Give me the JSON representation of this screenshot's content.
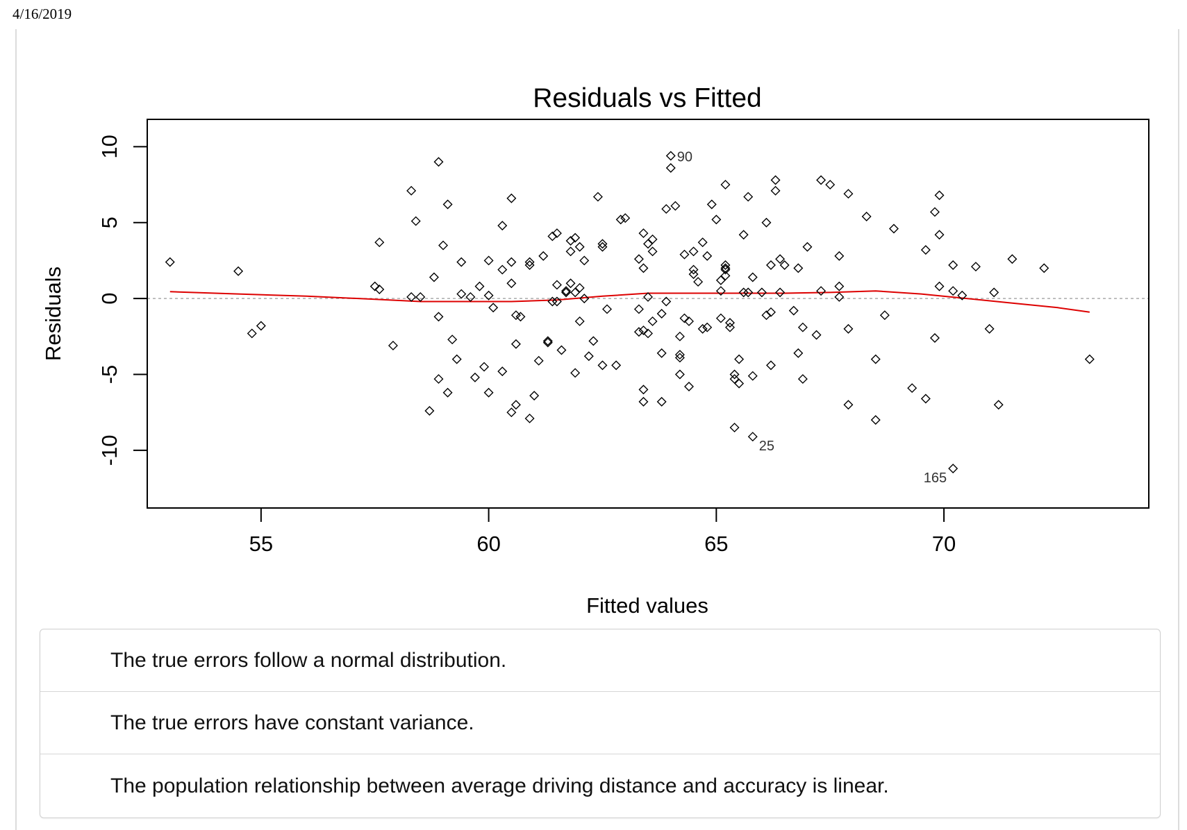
{
  "page": {
    "date": "4/16/2019"
  },
  "chart_data": {
    "type": "scatter",
    "title": "Residuals vs Fitted",
    "xlabel": "Fitted values",
    "ylabel": "Residuals",
    "xlim": [
      52.5,
      74.5
    ],
    "ylim": [
      -13.8,
      11.8
    ],
    "xticks": [
      55,
      60,
      65,
      70
    ],
    "yticks": [
      -10,
      -5,
      0,
      5,
      10
    ],
    "reference_line": 0,
    "colors": {
      "smooth": "#dd0000",
      "reference": "#aaaaaa",
      "points": "#000000"
    },
    "points": [
      [
        53.0,
        2.4
      ],
      [
        54.5,
        1.8
      ],
      [
        54.8,
        -2.3
      ],
      [
        55.0,
        -1.8
      ],
      [
        57.5,
        0.8
      ],
      [
        57.6,
        0.6
      ],
      [
        57.6,
        3.7
      ],
      [
        57.9,
        -3.1
      ],
      [
        58.3,
        7.1
      ],
      [
        58.3,
        0.1
      ],
      [
        58.4,
        5.1
      ],
      [
        58.5,
        0.1
      ],
      [
        58.7,
        -7.4
      ],
      [
        58.8,
        1.4
      ],
      [
        58.9,
        9.0
      ],
      [
        58.9,
        -1.2
      ],
      [
        58.9,
        -5.3
      ],
      [
        59.0,
        3.5
      ],
      [
        59.1,
        -6.2
      ],
      [
        59.1,
        6.2
      ],
      [
        59.2,
        -2.7
      ],
      [
        59.3,
        -4.0
      ],
      [
        59.4,
        2.4
      ],
      [
        59.4,
        0.3
      ],
      [
        59.6,
        0.1
      ],
      [
        59.7,
        -5.2
      ],
      [
        59.8,
        0.8
      ],
      [
        59.9,
        -4.5
      ],
      [
        60.0,
        -6.2
      ],
      [
        60.0,
        0.2
      ],
      [
        60.0,
        2.5
      ],
      [
        60.1,
        -0.6
      ],
      [
        60.3,
        1.9
      ],
      [
        60.3,
        4.8
      ],
      [
        60.3,
        -4.8
      ],
      [
        60.5,
        6.6
      ],
      [
        60.5,
        -7.5
      ],
      [
        60.5,
        2.4
      ],
      [
        60.5,
        1.0
      ],
      [
        60.6,
        -7.0
      ],
      [
        60.6,
        -1.1
      ],
      [
        60.6,
        -3.0
      ],
      [
        60.7,
        -1.2
      ],
      [
        60.9,
        -7.9
      ],
      [
        60.9,
        2.2
      ],
      [
        60.9,
        2.4
      ],
      [
        61.0,
        -6.4
      ],
      [
        61.1,
        -4.1
      ],
      [
        61.2,
        2.8
      ],
      [
        61.3,
        -2.8
      ],
      [
        61.3,
        -2.9
      ],
      [
        61.4,
        4.1
      ],
      [
        61.4,
        -0.2
      ],
      [
        61.5,
        -0.2
      ],
      [
        61.5,
        0.9
      ],
      [
        61.5,
        4.3
      ],
      [
        61.6,
        -3.4
      ],
      [
        61.7,
        0.5
      ],
      [
        61.7,
        0.4
      ],
      [
        61.8,
        1.0
      ],
      [
        61.8,
        3.8
      ],
      [
        61.8,
        3.1
      ],
      [
        61.9,
        -4.9
      ],
      [
        61.9,
        4.0
      ],
      [
        61.9,
        0.4
      ],
      [
        62.0,
        3.4
      ],
      [
        62.0,
        0.7
      ],
      [
        62.0,
        -1.5
      ],
      [
        62.1,
        0.0
      ],
      [
        62.1,
        2.5
      ],
      [
        62.2,
        -3.8
      ],
      [
        62.3,
        -2.8
      ],
      [
        62.4,
        6.7
      ],
      [
        62.5,
        -4.4
      ],
      [
        62.5,
        3.6
      ],
      [
        62.5,
        3.4
      ],
      [
        62.6,
        -0.7
      ],
      [
        62.8,
        -4.4
      ],
      [
        62.9,
        5.2
      ],
      [
        63.0,
        5.3
      ],
      [
        63.3,
        2.6
      ],
      [
        63.3,
        -0.7
      ],
      [
        63.3,
        -2.2
      ],
      [
        63.4,
        -2.1
      ],
      [
        63.4,
        -6.0
      ],
      [
        63.4,
        -6.8
      ],
      [
        63.4,
        4.3
      ],
      [
        63.4,
        2.0
      ],
      [
        63.5,
        0.1
      ],
      [
        63.5,
        -2.3
      ],
      [
        63.5,
        3.6
      ],
      [
        63.6,
        -1.5
      ],
      [
        63.6,
        3.9
      ],
      [
        63.6,
        3.1
      ],
      [
        63.8,
        -1.0
      ],
      [
        63.8,
        -3.6
      ],
      [
        63.8,
        -6.8
      ],
      [
        63.9,
        5.9
      ],
      [
        63.9,
        -0.2
      ],
      [
        64.0,
        9.4
      ],
      [
        64.0,
        8.6
      ],
      [
        64.1,
        6.1
      ],
      [
        64.2,
        -5.0
      ],
      [
        64.2,
        -3.7
      ],
      [
        64.2,
        -3.9
      ],
      [
        64.2,
        -2.5
      ],
      [
        64.3,
        2.9
      ],
      [
        64.3,
        -1.3
      ],
      [
        64.4,
        -1.5
      ],
      [
        64.4,
        -5.8
      ],
      [
        64.5,
        3.1
      ],
      [
        64.5,
        1.9
      ],
      [
        64.5,
        1.6
      ],
      [
        64.6,
        1.1
      ],
      [
        64.7,
        -2.0
      ],
      [
        64.7,
        3.7
      ],
      [
        64.8,
        -1.9
      ],
      [
        64.8,
        2.8
      ],
      [
        64.9,
        6.2
      ],
      [
        65.0,
        5.2
      ],
      [
        65.1,
        -1.3
      ],
      [
        65.1,
        0.5
      ],
      [
        65.1,
        1.2
      ],
      [
        65.2,
        1.5
      ],
      [
        65.2,
        2.0
      ],
      [
        65.2,
        2.2
      ],
      [
        65.2,
        7.5
      ],
      [
        65.2,
        1.9
      ],
      [
        65.3,
        -1.9
      ],
      [
        65.3,
        -1.6
      ],
      [
        65.4,
        -5.0
      ],
      [
        65.4,
        -5.3
      ],
      [
        65.4,
        -8.5
      ],
      [
        65.5,
        -5.6
      ],
      [
        65.5,
        -4.0
      ],
      [
        65.6,
        0.4
      ],
      [
        65.6,
        4.2
      ],
      [
        65.7,
        6.7
      ],
      [
        65.7,
        0.4
      ],
      [
        65.8,
        -5.1
      ],
      [
        65.8,
        1.4
      ],
      [
        65.8,
        -9.1
      ],
      [
        66.0,
        0.4
      ],
      [
        66.1,
        -1.1
      ],
      [
        66.1,
        5.0
      ],
      [
        66.2,
        -0.9
      ],
      [
        66.2,
        -4.4
      ],
      [
        66.2,
        2.2
      ],
      [
        66.3,
        7.1
      ],
      [
        66.3,
        7.8
      ],
      [
        66.4,
        0.4
      ],
      [
        66.4,
        2.6
      ],
      [
        66.5,
        2.2
      ],
      [
        66.7,
        -0.8
      ],
      [
        66.8,
        -3.6
      ],
      [
        66.8,
        2.0
      ],
      [
        66.9,
        -5.3
      ],
      [
        66.9,
        -1.9
      ],
      [
        67.0,
        3.4
      ],
      [
        67.2,
        -2.4
      ],
      [
        67.3,
        7.8
      ],
      [
        67.3,
        0.5
      ],
      [
        67.5,
        7.5
      ],
      [
        67.7,
        0.8
      ],
      [
        67.7,
        0.1
      ],
      [
        67.7,
        2.8
      ],
      [
        67.9,
        -2.0
      ],
      [
        67.9,
        -7.0
      ],
      [
        67.9,
        6.9
      ],
      [
        68.3,
        5.4
      ],
      [
        68.5,
        -4.0
      ],
      [
        68.5,
        -8.0
      ],
      [
        68.7,
        -1.1
      ],
      [
        68.9,
        4.6
      ],
      [
        69.3,
        -5.9
      ],
      [
        69.6,
        -6.6
      ],
      [
        69.6,
        3.2
      ],
      [
        69.8,
        -2.6
      ],
      [
        69.8,
        5.7
      ],
      [
        69.9,
        6.8
      ],
      [
        69.9,
        0.8
      ],
      [
        69.9,
        4.2
      ],
      [
        70.2,
        0.5
      ],
      [
        70.2,
        2.2
      ],
      [
        70.2,
        -11.2
      ],
      [
        70.4,
        0.2
      ],
      [
        70.7,
        2.1
      ],
      [
        71.0,
        -2.0
      ],
      [
        71.1,
        0.4
      ],
      [
        71.2,
        -7.0
      ],
      [
        71.5,
        2.6
      ],
      [
        72.2,
        2.0
      ],
      [
        73.2,
        -4.0
      ]
    ],
    "labeled_points": [
      {
        "label": "90",
        "x": 64.0,
        "y": 9.4
      },
      {
        "label": "25",
        "x": 65.8,
        "y": -9.1
      },
      {
        "label": "165",
        "x": 70.2,
        "y": -11.2
      }
    ],
    "smooth": {
      "x": [
        53.0,
        54.5,
        56.0,
        57.5,
        58.5,
        59.5,
        60.5,
        61.5,
        62.5,
        63.5,
        64.5,
        65.5,
        66.5,
        67.5,
        68.5,
        69.5,
        70.5,
        71.5,
        72.5,
        73.2
      ],
      "y": [
        0.45,
        0.3,
        0.15,
        -0.05,
        -0.2,
        -0.2,
        -0.2,
        -0.1,
        0.15,
        0.35,
        0.35,
        0.35,
        0.35,
        0.4,
        0.5,
        0.3,
        0.0,
        -0.3,
        -0.6,
        -0.9
      ]
    }
  },
  "options": [
    "The true errors follow a normal distribution.",
    "The true errors have constant variance.",
    "The population relationship between average driving distance and accuracy is linear."
  ]
}
